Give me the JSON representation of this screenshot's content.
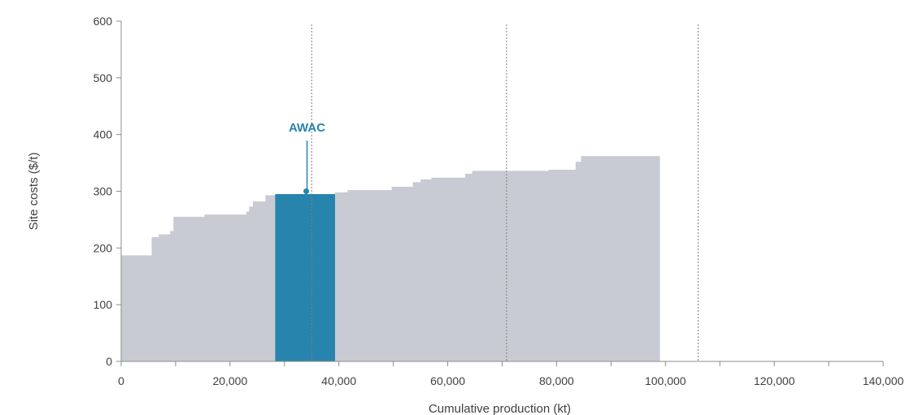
{
  "chart_data": {
    "type": "area",
    "xlabel": "Cumulative production (kt)",
    "ylabel": "Site costs ($/t)",
    "xlim": [
      0,
      140000
    ],
    "ylim": [
      0,
      600
    ],
    "x_ticks": [
      0,
      20000,
      40000,
      60000,
      80000,
      100000,
      120000,
      140000
    ],
    "x_tick_labels": [
      "0",
      "20,000",
      "40,000",
      "60,000",
      "80,000",
      "100,000",
      "120,000",
      "140,000"
    ],
    "y_ticks": [
      0,
      100,
      200,
      300,
      400,
      500,
      600
    ],
    "y_tick_labels": [
      "0",
      "100",
      "200",
      "300",
      "400",
      "500",
      "600"
    ],
    "grid": false,
    "colors": {
      "curve": "#c8cbd3",
      "highlight": "#2784ad",
      "axis": "#8c8c8c",
      "reference_line": "#7f7f7f"
    },
    "series": [
      {
        "name": "",
        "segments": [
          {
            "x_start": 0,
            "x_end": 5600,
            "value": 187
          },
          {
            "x_start": 5600,
            "x_end": 6900,
            "value": 219
          },
          {
            "x_start": 6900,
            "x_end": 9000,
            "value": 224
          },
          {
            "x_start": 9000,
            "x_end": 9600,
            "value": 230
          },
          {
            "x_start": 9600,
            "x_end": 15300,
            "value": 255
          },
          {
            "x_start": 15300,
            "x_end": 23000,
            "value": 259
          },
          {
            "x_start": 23000,
            "x_end": 23500,
            "value": 264
          },
          {
            "x_start": 23500,
            "x_end": 24200,
            "value": 273
          },
          {
            "x_start": 24200,
            "x_end": 26500,
            "value": 282
          },
          {
            "x_start": 26500,
            "x_end": 28300,
            "value": 293
          },
          {
            "x_start": 39300,
            "x_end": 41600,
            "value": 298
          },
          {
            "x_start": 41600,
            "x_end": 49700,
            "value": 302
          },
          {
            "x_start": 49700,
            "x_end": 53600,
            "value": 308
          },
          {
            "x_start": 53600,
            "x_end": 55000,
            "value": 316
          },
          {
            "x_start": 55000,
            "x_end": 57000,
            "value": 321
          },
          {
            "x_start": 57000,
            "x_end": 63200,
            "value": 324
          },
          {
            "x_start": 63200,
            "x_end": 64500,
            "value": 331
          },
          {
            "x_start": 64500,
            "x_end": 78500,
            "value": 336
          },
          {
            "x_start": 78500,
            "x_end": 83500,
            "value": 338
          },
          {
            "x_start": 83500,
            "x_end": 84500,
            "value": 352
          },
          {
            "x_start": 84500,
            "x_end": 98900,
            "value": 362
          }
        ]
      },
      {
        "name": "AWAC",
        "segments": [
          {
            "x_start": 28300,
            "x_end": 39300,
            "value": 295
          }
        ]
      }
    ],
    "annotations": [
      {
        "text": "AWAC",
        "x": 34000,
        "y": 300
      }
    ],
    "reference_lines": [
      35000,
      70800,
      106000
    ]
  }
}
